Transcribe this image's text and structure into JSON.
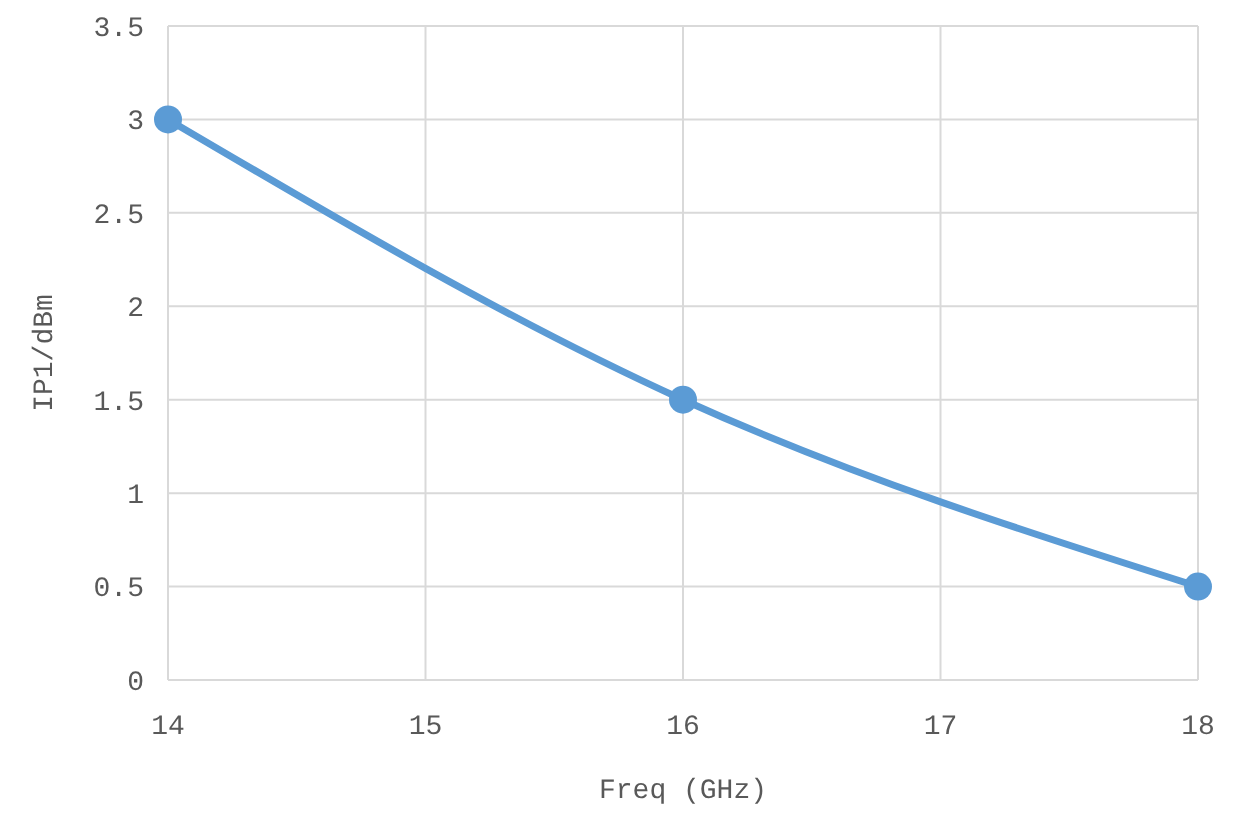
{
  "chart_data": {
    "type": "line",
    "xlabel": "Freq (GHz)",
    "ylabel": "IP1/dBm",
    "x": [
      14,
      16,
      18
    ],
    "series": [
      {
        "color": "#5b9bd5",
        "values": [
          3,
          1.5,
          0.5
        ]
      }
    ],
    "xlim": [
      14,
      18
    ],
    "xticks": [
      14,
      15,
      16,
      17,
      18
    ],
    "ylim": [
      0,
      3.5
    ],
    "yticks": [
      0,
      0.5,
      1,
      1.5,
      2,
      2.5,
      3,
      3.5
    ],
    "grid": true,
    "marker": "circle",
    "line_style": "solid"
  }
}
